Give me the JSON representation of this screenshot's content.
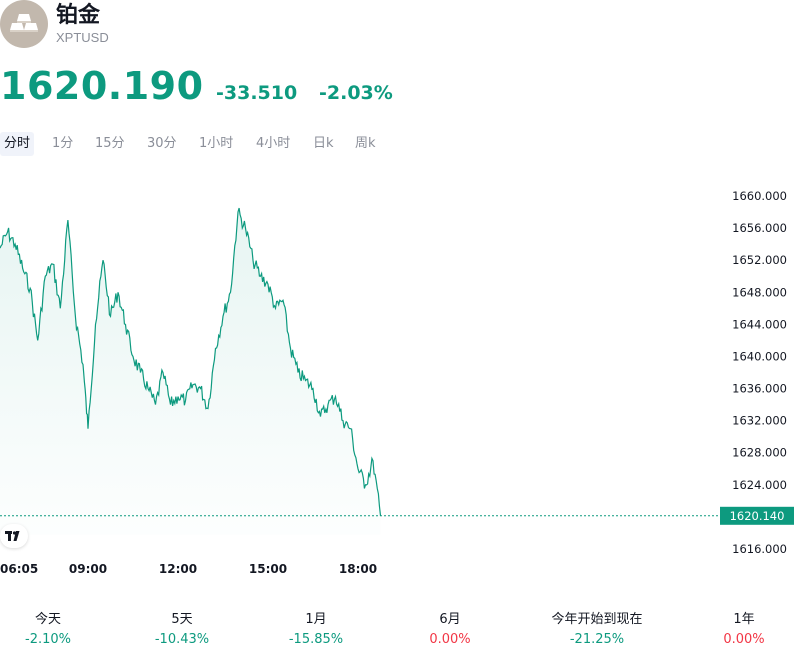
{
  "header": {
    "name": "铂金",
    "ticker": "XPTUSD",
    "logo_icon": "gold-bars-icon"
  },
  "quote": {
    "price": "1620.190",
    "change": "-33.510",
    "change_pct": "-2.03%",
    "color": "#0d9a7f"
  },
  "tabs": [
    {
      "label": "分时",
      "active": true
    },
    {
      "label": "1分"
    },
    {
      "label": "15分"
    },
    {
      "label": "30分"
    },
    {
      "label": "1小时"
    },
    {
      "label": "4小时"
    },
    {
      "label": "日k"
    },
    {
      "label": "周k"
    }
  ],
  "chart_data": {
    "type": "area",
    "y_ticks": [
      "1660.000",
      "1656.000",
      "1652.000",
      "1648.000",
      "1644.000",
      "1640.000",
      "1636.000",
      "1632.000",
      "1628.000",
      "1624.000",
      "1620.000",
      "1616.000"
    ],
    "x_ticks": [
      "06:05",
      "09:00",
      "12:00",
      "15:00",
      "18:00"
    ],
    "ylim": [
      1616,
      1660
    ],
    "last_price_label": "1620.140",
    "last_price": 1620.14,
    "line_color": "#0d9a7f",
    "x": [
      "06:05",
      "06:20",
      "06:35",
      "06:50",
      "07:05",
      "07:20",
      "07:35",
      "07:50",
      "08:05",
      "08:20",
      "08:35",
      "08:50",
      "09:00",
      "09:15",
      "09:30",
      "09:45",
      "10:00",
      "10:15",
      "10:30",
      "10:45",
      "11:00",
      "11:15",
      "11:30",
      "11:45",
      "12:00",
      "12:15",
      "12:30",
      "12:45",
      "13:00",
      "13:15",
      "13:30",
      "13:45",
      "14:00",
      "14:15",
      "14:30",
      "14:45",
      "15:00",
      "15:15",
      "15:30",
      "15:45",
      "16:00",
      "16:15",
      "16:30",
      "16:45",
      "17:00",
      "17:15",
      "17:30",
      "17:45",
      "18:00",
      "18:15",
      "18:30",
      "18:45"
    ],
    "values": [
      1653.5,
      1655.5,
      1654.0,
      1651.0,
      1648.5,
      1642.0,
      1650.0,
      1651.5,
      1646.0,
      1657.0,
      1645.0,
      1639.0,
      1631.0,
      1644.0,
      1652.0,
      1645.0,
      1648.0,
      1644.0,
      1640.0,
      1638.0,
      1636.0,
      1634.0,
      1638.0,
      1634.0,
      1635.0,
      1634.5,
      1636.5,
      1636.0,
      1633.5,
      1641.0,
      1645.0,
      1648.0,
      1658.0,
      1656.0,
      1652.0,
      1650.0,
      1649.0,
      1646.0,
      1647.0,
      1641.0,
      1638.0,
      1637.0,
      1636.0,
      1632.5,
      1634.0,
      1635.0,
      1632.0,
      1631.0,
      1626.0,
      1624.0,
      1627.0,
      1620.14
    ]
  },
  "periods": [
    {
      "label": "今天",
      "value": "-2.10%",
      "dir": "down"
    },
    {
      "label": "5天",
      "value": "-10.43%",
      "dir": "down"
    },
    {
      "label": "1月",
      "value": "-15.85%",
      "dir": "down"
    },
    {
      "label": "6月",
      "value": "0.00%",
      "dir": "flat"
    },
    {
      "label": "今年开始到现在",
      "value": "-21.25%",
      "dir": "down"
    },
    {
      "label": "1年",
      "value": "0.00%",
      "dir": "flat"
    }
  ]
}
